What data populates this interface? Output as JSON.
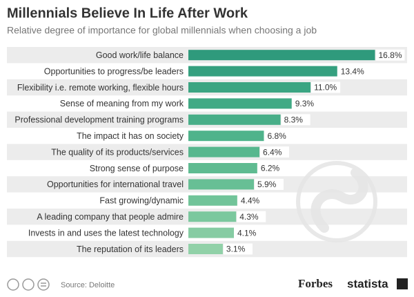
{
  "chart_data": {
    "type": "bar",
    "orientation": "horizontal",
    "title": "Millennials Believe In Life After Work",
    "subtitle": "Relative degree of importance for global millennials when choosing a job",
    "categories": [
      "Good work/life balance",
      "Opportunities to progress/be leaders",
      "Flexibility i.e. remote working, flexible hours",
      "Sense of meaning from my work",
      "Professional development training programs",
      "The impact it has on society",
      "The quality of its products/services",
      "Strong sense of purpose",
      "Opportunities for international travel",
      "Fast growing/dynamic",
      "A leading company that people admire",
      "Invests in and uses the latest technology",
      "The reputation of its leaders"
    ],
    "values": [
      16.8,
      13.4,
      11.0,
      9.3,
      8.3,
      6.8,
      6.4,
      6.2,
      5.9,
      4.4,
      4.3,
      4.1,
      3.1
    ],
    "value_labels": [
      "16.8%",
      "13.4%",
      "11.0%",
      "9.3%",
      "8.3%",
      "6.8%",
      "6.4%",
      "6.2%",
      "5.9%",
      "4.4%",
      "4.3%",
      "4.1%",
      "3.1%"
    ],
    "colors": [
      "#2f9a7c",
      "#35a07f",
      "#3ba582",
      "#41aa85",
      "#48ae88",
      "#4fb38b",
      "#57b78e",
      "#5fbb91",
      "#67bf95",
      "#71c499",
      "#7bc89e",
      "#86cca3",
      "#91d1a8"
    ],
    "source": "Source: Deloitte"
  },
  "footer": {
    "brands": [
      "Forbes",
      "statista"
    ]
  }
}
